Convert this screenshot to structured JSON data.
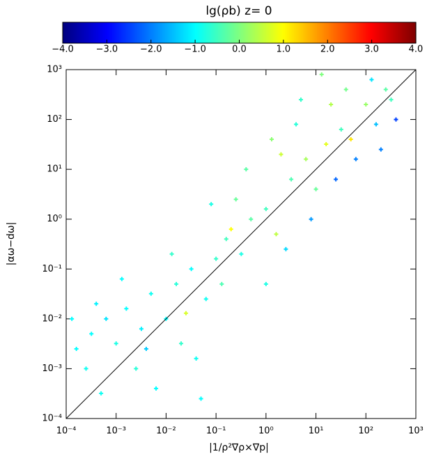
{
  "chart_data": {
    "type": "scatter",
    "colorbar_title": "lg(ρb) z= 0",
    "x_label": "|1/ρ²∇ρ×∇p|",
    "y_label": "|αω−dω|",
    "log_x": true,
    "log_y": true,
    "colormap": "jet",
    "xlim": [
      0.0001,
      1000
    ],
    "ylim": [
      0.0001,
      1000
    ],
    "clim": [
      -4,
      4
    ],
    "xticks": [
      {
        "value": 0.0001,
        "label": "10⁻⁴"
      },
      {
        "value": 0.001,
        "label": "10⁻³"
      },
      {
        "value": 0.01,
        "label": "10⁻²"
      },
      {
        "value": 0.1,
        "label": "10⁻¹"
      },
      {
        "value": 1,
        "label": "10⁰"
      },
      {
        "value": 10,
        "label": "10¹"
      },
      {
        "value": 100,
        "label": "10²"
      },
      {
        "value": 1000,
        "label": "10³"
      }
    ],
    "yticks": [
      {
        "value": 0.0001,
        "label": "10⁻⁴"
      },
      {
        "value": 0.001,
        "label": "10⁻³"
      },
      {
        "value": 0.01,
        "label": "10⁻²"
      },
      {
        "value": 0.1,
        "label": "10⁻¹"
      },
      {
        "value": 1,
        "label": "10⁰"
      },
      {
        "value": 10,
        "label": "10¹"
      },
      {
        "value": 100,
        "label": "10²"
      },
      {
        "value": 1000,
        "label": "10³"
      }
    ],
    "cticks": [
      {
        "value": -4,
        "label": "−4.0"
      },
      {
        "value": -3,
        "label": "−3.0"
      },
      {
        "value": -2,
        "label": "−2.0"
      },
      {
        "value": -1,
        "label": "−1.0"
      },
      {
        "value": 0,
        "label": "0.0"
      },
      {
        "value": 1,
        "label": "1.0"
      },
      {
        "value": 2,
        "label": "2.0"
      },
      {
        "value": 3,
        "label": "3.0"
      },
      {
        "value": 4,
        "label": "4.0"
      }
    ],
    "x": [
      0.00032,
      0.00063,
      0.001,
      0.0016,
      0.0032,
      0.005,
      0.01,
      0.016,
      0.032,
      0.063,
      0.1,
      0.16,
      0.32,
      0.5,
      1,
      1.6,
      3.2,
      6.3,
      10,
      16,
      32,
      63,
      100,
      160,
      250,
      400,
      0.00016,
      0.00025,
      0.0004,
      0.0025,
      0.0063,
      0.02,
      0.04,
      0.13,
      0.25,
      2,
      4,
      20,
      40,
      130,
      8,
      25,
      2.5,
      200,
      0.0013,
      0.013,
      0.08,
      0.4,
      1.3,
      5,
      13,
      0.0005,
      0.004,
      0.025,
      0.2,
      1,
      50,
      320,
      0.00013,
      0.05
    ],
    "values": [
      0.005,
      0.01,
      0.0032,
      0.016,
      0.0063,
      0.032,
      0.01,
      0.05,
      0.1,
      0.025,
      0.16,
      0.4,
      0.2,
      1,
      1.6,
      0.5,
      6.3,
      16,
      4,
      32,
      63,
      16,
      200,
      80,
      400,
      100,
      0.0025,
      0.001,
      0.02,
      0.001,
      0.0004,
      0.0032,
      0.0016,
      0.05,
      2.5,
      20,
      80,
      200,
      400,
      630,
      1,
      6.3,
      0.25,
      25,
      0.063,
      0.2,
      2,
      10,
      40,
      250,
      800,
      0.00032,
      0.0025,
      0.013,
      0.63,
      0.05,
      40,
      250,
      0.01,
      0.00025
    ],
    "color_values": [
      -1,
      -1.2,
      -0.8,
      -1,
      -1.1,
      -0.9,
      -1,
      -0.7,
      -1,
      -0.9,
      -0.6,
      -0.5,
      -0.8,
      -0.3,
      -0.5,
      0.5,
      -0.4,
      0.3,
      -0.2,
      0.8,
      -0.5,
      -2,
      0.2,
      -1.5,
      -0.3,
      -2.5,
      -1,
      -0.9,
      -1.1,
      -0.7,
      -1,
      -0.6,
      -0.9,
      -0.4,
      -0.2,
      0.6,
      -0.7,
      0.4,
      -0.1,
      -1.2,
      -1.8,
      -2.2,
      -1.3,
      -2,
      -1,
      -0.6,
      -0.8,
      -0.3,
      0.1,
      -0.6,
      0,
      -0.9,
      -1.4,
      0.7,
      1,
      -0.8,
      1.2,
      -0.5,
      -1,
      -1
    ]
  }
}
